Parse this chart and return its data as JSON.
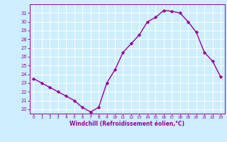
{
  "x": [
    0,
    1,
    2,
    3,
    4,
    5,
    6,
    7,
    8,
    9,
    10,
    11,
    12,
    13,
    14,
    15,
    16,
    17,
    18,
    19,
    20,
    21,
    22,
    23
  ],
  "y": [
    23.5,
    23.0,
    22.5,
    22.0,
    21.5,
    21.0,
    20.2,
    19.7,
    20.2,
    23.0,
    24.5,
    26.5,
    27.5,
    28.5,
    30.0,
    30.5,
    31.3,
    31.2,
    31.0,
    30.0,
    28.8,
    26.5,
    25.5,
    23.7
  ],
  "line_color": "#990099",
  "marker": "D",
  "markersize": 2.2,
  "linewidth": 1.0,
  "bg_color": "#cceeff",
  "grid_color": "#ffffff",
  "xlabel": "Windchill (Refroidissement éolien,°C)",
  "xlabel_color": "#990099",
  "tick_color": "#990099",
  "ylim": [
    19.5,
    32.0
  ],
  "xlim": [
    -0.5,
    23.5
  ],
  "yticks": [
    20,
    21,
    22,
    23,
    24,
    25,
    26,
    27,
    28,
    29,
    30,
    31
  ],
  "xticks": [
    0,
    1,
    2,
    3,
    4,
    5,
    6,
    7,
    8,
    9,
    10,
    11,
    12,
    13,
    14,
    15,
    16,
    17,
    18,
    19,
    20,
    21,
    22,
    23
  ]
}
